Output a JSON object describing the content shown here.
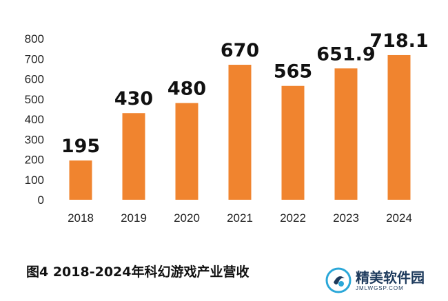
{
  "chart_data": {
    "type": "bar",
    "categories": [
      "2018",
      "2019",
      "2020",
      "2021",
      "2022",
      "2023",
      "2024"
    ],
    "values": [
      195,
      430,
      480,
      670,
      565,
      651.9,
      718.1
    ],
    "data_labels": [
      "195",
      "430",
      "480",
      "670",
      "565",
      "651.9",
      "718.1"
    ],
    "ylim": [
      0,
      800
    ],
    "yticks": [
      0,
      100,
      200,
      300,
      400,
      500,
      600,
      700,
      800
    ],
    "grid": false,
    "bar_color": "#F0842F"
  },
  "caption": "图4  2018-2024年科幻游戏产业营收",
  "watermark": {
    "name": "精美软件园",
    "url": "JMLWGSP.COM",
    "color": "#1d3a5c",
    "accent": "#2aa7d8"
  }
}
